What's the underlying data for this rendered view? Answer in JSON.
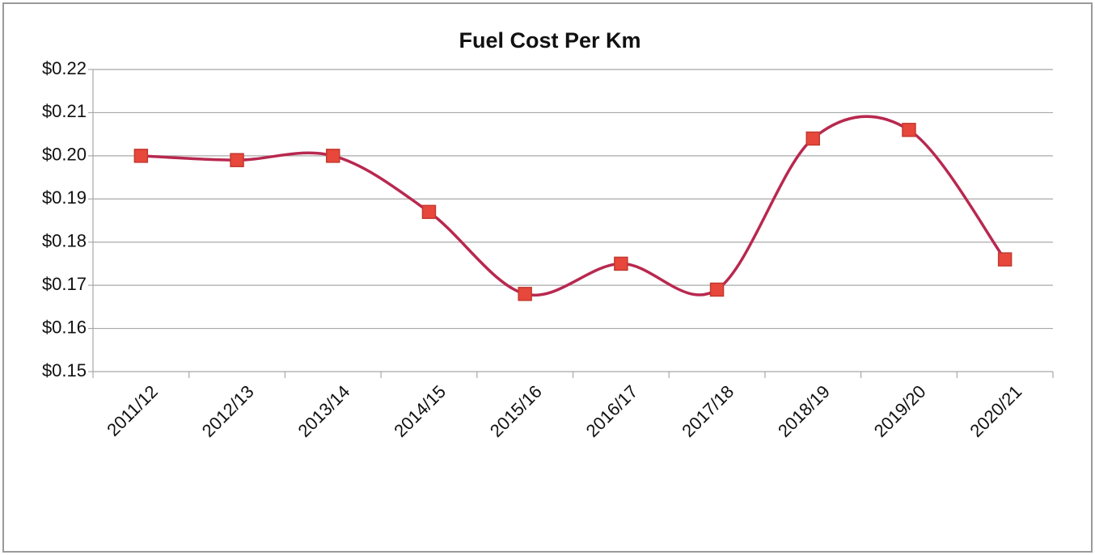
{
  "chart_data": {
    "type": "line",
    "title": "Fuel Cost Per Km",
    "categories": [
      "2011/12",
      "2012/13",
      "2013/14",
      "2014/15",
      "2015/16",
      "2016/17",
      "2017/18",
      "2018/19",
      "2019/20",
      "2020/21"
    ],
    "values": [
      0.2,
      0.199,
      0.2,
      0.187,
      0.168,
      0.175,
      0.169,
      0.204,
      0.206,
      0.176
    ],
    "color": "#b8284f",
    "marker_color": "#e8473b",
    "smooth": true,
    "ylim": [
      0.15,
      0.22
    ],
    "yticks": [
      {
        "value": 0.15,
        "label": "$0.15"
      },
      {
        "value": 0.16,
        "label": "$0.16"
      },
      {
        "value": 0.17,
        "label": "$0.17"
      },
      {
        "value": 0.18,
        "label": "$0.18"
      },
      {
        "value": 0.19,
        "label": "$0.19"
      },
      {
        "value": 0.2,
        "label": "$0.20"
      },
      {
        "value": 0.21,
        "label": "$0.21"
      },
      {
        "value": 0.22,
        "label": "$0.22"
      }
    ],
    "grid": true
  }
}
